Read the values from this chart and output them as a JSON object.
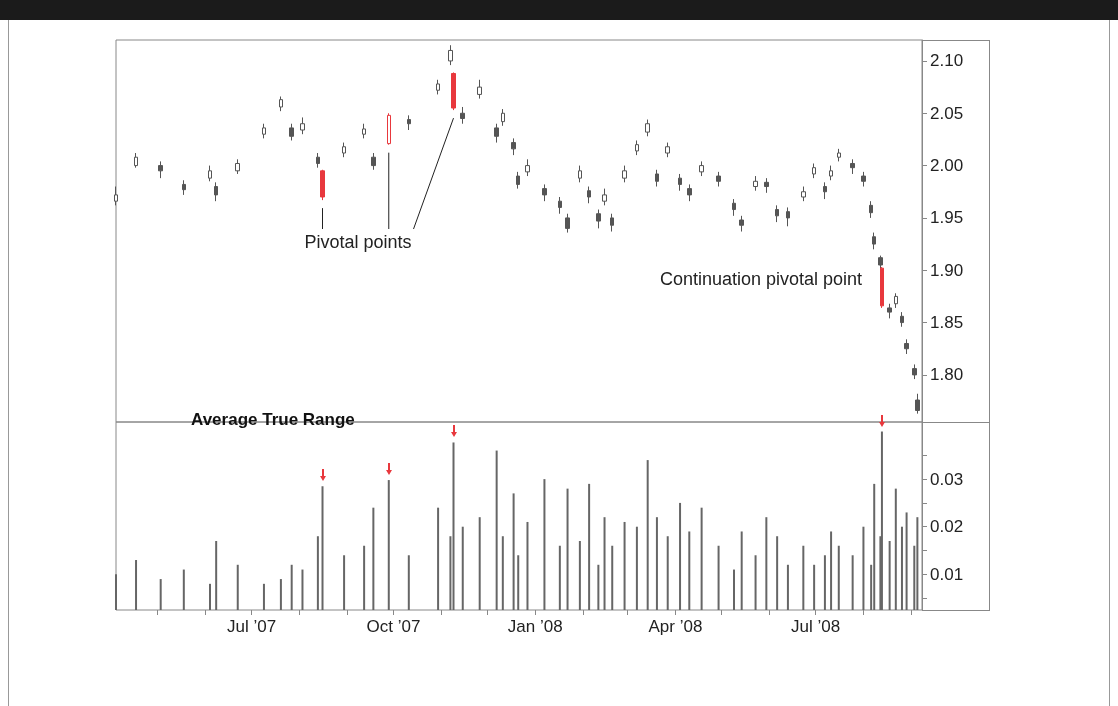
{
  "chart_data": [
    {
      "type": "candlestick",
      "x": [
        "2007-04-04",
        "2007-04-17",
        "2007-05-03",
        "2007-05-18",
        "2007-06-04",
        "2007-06-08",
        "2007-06-22",
        "2007-07-09",
        "2007-07-20",
        "2007-07-27",
        "2007-08-03",
        "2007-08-13",
        "2007-08-16",
        "2007-08-30",
        "2007-09-12",
        "2007-09-18",
        "2007-09-28",
        "2007-10-11",
        "2007-10-30",
        "2007-11-07",
        "2007-11-09",
        "2007-11-15",
        "2007-11-26",
        "2007-12-07",
        "2007-12-11",
        "2007-12-18",
        "2007-12-21",
        "2007-12-27",
        "2008-01-07",
        "2008-01-17",
        "2008-01-22",
        "2008-01-30",
        "2008-02-05",
        "2008-02-11",
        "2008-02-15",
        "2008-02-20",
        "2008-02-28",
        "2008-03-07",
        "2008-03-14",
        "2008-03-20",
        "2008-03-27",
        "2008-04-04",
        "2008-04-10",
        "2008-04-18",
        "2008-04-29",
        "2008-05-09",
        "2008-05-14",
        "2008-05-23",
        "2008-05-30",
        "2008-06-06",
        "2008-06-13",
        "2008-06-23",
        "2008-06-30",
        "2008-07-07",
        "2008-07-11",
        "2008-07-16",
        "2008-07-25",
        "2008-08-01",
        "2008-08-06",
        "2008-08-08",
        "2008-08-12",
        "2008-08-13",
        "2008-08-18",
        "2008-08-22",
        "2008-08-26",
        "2008-08-29",
        "2008-09-03",
        "2008-09-05"
      ],
      "ohlc": [
        [
          1.966,
          1.98,
          1.962,
          1.972
        ],
        [
          2.0,
          2.012,
          1.998,
          2.008
        ],
        [
          2.0,
          2.004,
          1.988,
          1.995
        ],
        [
          1.982,
          1.986,
          1.972,
          1.977
        ],
        [
          1.988,
          2.0,
          1.985,
          1.995
        ],
        [
          1.98,
          1.984,
          1.966,
          1.972
        ],
        [
          1.995,
          2.006,
          1.992,
          2.002
        ],
        [
          2.03,
          2.04,
          2.026,
          2.036
        ],
        [
          2.056,
          2.066,
          2.052,
          2.063
        ],
        [
          2.036,
          2.04,
          2.024,
          2.028
        ],
        [
          2.034,
          2.046,
          2.03,
          2.04
        ],
        [
          2.008,
          2.012,
          1.998,
          2.002
        ],
        [
          1.995,
          1.996,
          1.967,
          1.97
        ],
        [
          2.012,
          2.022,
          2.008,
          2.018
        ],
        [
          2.03,
          2.04,
          2.026,
          2.035
        ],
        [
          2.008,
          2.012,
          1.996,
          2.0
        ],
        [
          2.021,
          2.05,
          2.02,
          2.048
        ],
        [
          2.044,
          2.048,
          2.034,
          2.04
        ],
        [
          2.072,
          2.082,
          2.068,
          2.078
        ],
        [
          2.1,
          2.115,
          2.096,
          2.11
        ],
        [
          2.088,
          2.089,
          2.053,
          2.055
        ],
        [
          2.05,
          2.056,
          2.04,
          2.045
        ],
        [
          2.068,
          2.082,
          2.064,
          2.075
        ],
        [
          2.036,
          2.04,
          2.022,
          2.028
        ],
        [
          2.042,
          2.054,
          2.038,
          2.05
        ],
        [
          2.022,
          2.026,
          2.01,
          2.016
        ],
        [
          1.99,
          1.994,
          1.978,
          1.982
        ],
        [
          1.994,
          2.006,
          1.99,
          2.0
        ],
        [
          1.978,
          1.982,
          1.966,
          1.972
        ],
        [
          1.966,
          1.97,
          1.954,
          1.96
        ],
        [
          1.95,
          1.954,
          1.936,
          1.94
        ],
        [
          1.988,
          2.0,
          1.984,
          1.995
        ],
        [
          1.976,
          1.98,
          1.964,
          1.97
        ],
        [
          1.954,
          1.958,
          1.94,
          1.947
        ],
        [
          1.966,
          1.978,
          1.962,
          1.972
        ],
        [
          1.95,
          1.954,
          1.937,
          1.943
        ],
        [
          1.988,
          2.0,
          1.984,
          1.995
        ],
        [
          2.014,
          2.024,
          2.01,
          2.02
        ],
        [
          2.032,
          2.044,
          2.028,
          2.04
        ],
        [
          1.992,
          1.996,
          1.98,
          1.985
        ],
        [
          2.012,
          2.022,
          2.008,
          2.018
        ],
        [
          1.988,
          1.992,
          1.976,
          1.982
        ],
        [
          1.978,
          1.982,
          1.966,
          1.972
        ],
        [
          1.994,
          2.004,
          1.99,
          2.0
        ],
        [
          1.99,
          1.994,
          1.98,
          1.985
        ],
        [
          1.964,
          1.968,
          1.952,
          1.958
        ],
        [
          1.948,
          1.952,
          1.937,
          1.943
        ],
        [
          1.98,
          1.99,
          1.976,
          1.985
        ],
        [
          1.984,
          1.988,
          1.974,
          1.98
        ],
        [
          1.958,
          1.962,
          1.946,
          1.952
        ],
        [
          1.956,
          1.96,
          1.942,
          1.95
        ],
        [
          1.97,
          1.98,
          1.966,
          1.975
        ],
        [
          1.992,
          2.002,
          1.988,
          1.998
        ],
        [
          1.98,
          1.984,
          1.968,
          1.975
        ],
        [
          1.99,
          2.0,
          1.986,
          1.995
        ],
        [
          2.008,
          2.016,
          2.004,
          2.012
        ],
        [
          2.002,
          2.006,
          1.992,
          1.998
        ],
        [
          1.99,
          1.994,
          1.98,
          1.985
        ],
        [
          1.962,
          1.966,
          1.95,
          1.955
        ],
        [
          1.932,
          1.936,
          1.92,
          1.925
        ],
        [
          1.912,
          1.914,
          1.9,
          1.905
        ],
        [
          1.902,
          1.903,
          1.864,
          1.866
        ],
        [
          1.864,
          1.868,
          1.854,
          1.86
        ],
        [
          1.868,
          1.878,
          1.864,
          1.875
        ],
        [
          1.856,
          1.86,
          1.846,
          1.85
        ],
        [
          1.83,
          1.834,
          1.82,
          1.825
        ],
        [
          1.806,
          1.81,
          1.796,
          1.8
        ],
        [
          1.776,
          1.782,
          1.763,
          1.766
        ]
      ],
      "color": "#555555",
      "colors": [
        "#555555",
        "#555555",
        "#555555",
        "#555555",
        "#555555",
        "#555555",
        "#555555",
        "#555555",
        "#555555",
        "#555555",
        "#555555",
        "#555555",
        "#e8383d",
        "#555555",
        "#555555",
        "#555555",
        "#e8383d",
        "#555555",
        "#555555",
        "#555555",
        "#e8383d",
        "#555555",
        "#555555",
        "#555555",
        "#555555",
        "#555555",
        "#555555",
        "#555555",
        "#555555",
        "#555555",
        "#555555",
        "#555555",
        "#555555",
        "#555555",
        "#555555",
        "#555555",
        "#555555",
        "#555555",
        "#555555",
        "#555555",
        "#555555",
        "#555555",
        "#555555",
        "#555555",
        "#555555",
        "#555555",
        "#555555",
        "#555555",
        "#555555",
        "#555555",
        "#555555",
        "#555555",
        "#555555",
        "#555555",
        "#555555",
        "#555555",
        "#555555",
        "#555555",
        "#555555",
        "#555555",
        "#555555",
        "#e8383d",
        "#555555",
        "#555555",
        "#555555",
        "#555555",
        "#555555",
        "#555555"
      ],
      "xlim": [
        "2007-04-04",
        "2008-09-08"
      ],
      "ylim": [
        1.755,
        2.12
      ],
      "yticks": [
        {
          "value": 1.8,
          "label": "1.80"
        },
        1.85,
        {
          "value": 1.9,
          "label": "1.90"
        },
        1.95,
        {
          "value": 2,
          "label": "2.00"
        },
        2.05,
        {
          "value": 2.1,
          "label": "2.10"
        }
      ],
      "tick_labels": "y",
      "annotations": [
        "Pivotal points",
        "Continuation pivotal point"
      ]
    },
    {
      "type": "bar",
      "title": "Average True Range",
      "x": [
        "2007-04-04",
        "2007-04-17",
        "2007-05-03",
        "2007-05-18",
        "2007-06-04",
        "2007-06-08",
        "2007-06-22",
        "2007-07-09",
        "2007-07-20",
        "2007-07-27",
        "2007-08-03",
        "2007-08-13",
        "2007-08-16",
        "2007-08-30",
        "2007-09-12",
        "2007-09-18",
        "2007-09-28",
        "2007-10-11",
        "2007-10-30",
        "2007-11-07",
        "2007-11-09",
        "2007-11-15",
        "2007-11-26",
        "2007-12-07",
        "2007-12-11",
        "2007-12-18",
        "2007-12-21",
        "2007-12-27",
        "2008-01-07",
        "2008-01-17",
        "2008-01-22",
        "2008-01-30",
        "2008-02-05",
        "2008-02-11",
        "2008-02-15",
        "2008-02-20",
        "2008-02-28",
        "2008-03-07",
        "2008-03-14",
        "2008-03-20",
        "2008-03-27",
        "2008-04-04",
        "2008-04-10",
        "2008-04-18",
        "2008-04-29",
        "2008-05-09",
        "2008-05-14",
        "2008-05-23",
        "2008-05-30",
        "2008-06-06",
        "2008-06-13",
        "2008-06-23",
        "2008-06-30",
        "2008-07-07",
        "2008-07-11",
        "2008-07-16",
        "2008-07-25",
        "2008-08-01",
        "2008-08-06",
        "2008-08-08",
        "2008-08-12",
        "2008-08-13",
        "2008-08-18",
        "2008-08-22",
        "2008-08-26",
        "2008-08-29",
        "2008-09-03",
        "2008-09-05"
      ],
      "values": [
        0.01,
        0.013,
        0.009,
        0.011,
        0.008,
        0.017,
        0.012,
        0.008,
        0.009,
        0.012,
        0.011,
        0.018,
        0.0285,
        0.014,
        0.016,
        0.024,
        0.0298,
        0.014,
        0.024,
        0.018,
        0.0377,
        0.02,
        0.022,
        0.036,
        0.018,
        0.027,
        0.014,
        0.021,
        0.03,
        0.016,
        0.028,
        0.017,
        0.029,
        0.012,
        0.022,
        0.016,
        0.021,
        0.02,
        0.034,
        0.022,
        0.018,
        0.025,
        0.019,
        0.024,
        0.016,
        0.011,
        0.019,
        0.014,
        0.022,
        0.018,
        0.012,
        0.016,
        0.012,
        0.014,
        0.019,
        0.016,
        0.014,
        0.02,
        0.012,
        0.029,
        0.018,
        0.04,
        0.017,
        0.028,
        0.02,
        0.023,
        0.016,
        0.022
      ],
      "color": "#666666",
      "xlim": [
        "2007-04-04",
        "2008-09-08"
      ],
      "xticks": [
        {
          "value": "2007-05-01",
          "label": null
        },
        {
          "value": "2007-06-01",
          "label": null
        },
        {
          "value": "2007-07-01",
          "label": "Jul ’07"
        },
        {
          "value": "2007-08-01",
          "label": null
        },
        {
          "value": "2007-09-01",
          "label": null
        },
        {
          "value": "2007-10-01",
          "label": "Oct ’07"
        },
        {
          "value": "2007-11-01",
          "label": null
        },
        {
          "value": "2007-12-01",
          "label": null
        },
        {
          "value": "2008-01-01",
          "label": "Jan ’08"
        },
        {
          "value": "2008-02-01",
          "label": null
        },
        {
          "value": "2008-03-01",
          "label": null
        },
        {
          "value": "2008-04-01",
          "label": "Apr ’08"
        },
        {
          "value": "2008-05-01",
          "label": null
        },
        {
          "value": "2008-06-01",
          "label": null
        },
        {
          "value": "2008-07-01",
          "label": "Jul ’08"
        },
        {
          "value": "2008-08-01",
          "label": null
        },
        {
          "value": "2008-09-01",
          "label": null
        }
      ],
      "ylim": [
        0.0025,
        0.042
      ],
      "yticks": [
        {
          "value": 0.005,
          "label": null
        },
        0.01,
        {
          "value": 0.015,
          "label": null
        },
        0.02,
        {
          "value": 0.025,
          "label": null
        },
        0.03,
        {
          "value": 0.035,
          "label": null
        }
      ]
    }
  ]
}
